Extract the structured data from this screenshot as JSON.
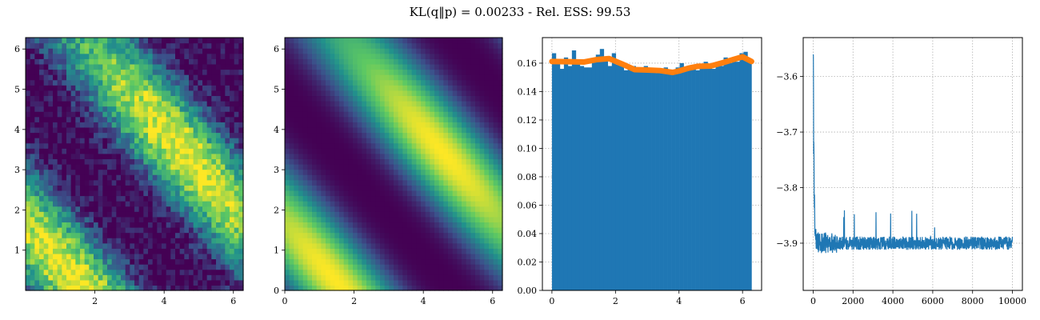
{
  "figure": {
    "title": "KL(q‖p) = 0.00233 - Rel. ESS: 99.53"
  },
  "chart_data": [
    {
      "type": "heatmap",
      "panel": "empirical-samples",
      "colormap": "viridis",
      "xlim": [
        0.0,
        6.283
      ],
      "ylim": [
        0.0,
        6.283
      ],
      "grid_resolution": 48,
      "xticks": [
        2,
        4,
        6
      ],
      "yticks": [
        1,
        2,
        3,
        4,
        5,
        6
      ],
      "density_model": {
        "band_orientation": "x+y",
        "peak_at_sum": 8.0,
        "period": 6.283,
        "noise": 0.32
      }
    },
    {
      "type": "heatmap",
      "panel": "target-density",
      "colormap": "viridis",
      "xlim": [
        0.0,
        6.283
      ],
      "ylim": [
        0.0,
        6.283
      ],
      "grid_resolution": 48,
      "xticks": [
        0,
        2,
        4,
        6
      ],
      "yticks": [
        0,
        1,
        2,
        3,
        4,
        5,
        6
      ],
      "density_model": {
        "band_orientation": "x+y",
        "peak_at_sum": 8.0,
        "period": 6.283,
        "noise": 0.0
      }
    },
    {
      "type": "bar",
      "panel": "marginal-histogram",
      "grid": true,
      "xlim": [
        -0.3,
        6.6
      ],
      "ylim": [
        0.0,
        0.178
      ],
      "xticks": [
        0,
        2,
        4,
        6
      ],
      "yticks": [
        0.0,
        0.02,
        0.04,
        0.06,
        0.08,
        0.1,
        0.12,
        0.14,
        0.16
      ],
      "bar_color": "#1f77b4",
      "bin_edges": [
        0.0,
        6.283
      ],
      "bin_values": [
        0.167,
        0.162,
        0.156,
        0.164,
        0.158,
        0.169,
        0.161,
        0.158,
        0.157,
        0.157,
        0.161,
        0.166,
        0.17,
        0.163,
        0.158,
        0.167,
        0.159,
        0.16,
        0.155,
        0.158,
        0.158,
        0.157,
        0.156,
        0.158,
        0.155,
        0.156,
        0.153,
        0.155,
        0.157,
        0.154,
        0.153,
        0.157,
        0.16,
        0.155,
        0.158,
        0.157,
        0.155,
        0.158,
        0.161,
        0.158,
        0.156,
        0.159,
        0.158,
        0.164,
        0.16,
        0.164,
        0.161,
        0.167,
        0.168,
        0.163
      ],
      "curve": {
        "color": "#ff7f0e",
        "x": [
          0.0,
          0.5,
          1.0,
          1.4,
          1.8,
          2.2,
          2.6,
          3.0,
          3.4,
          3.8,
          4.0,
          4.3,
          4.6,
          5.0,
          5.4,
          5.7,
          6.0,
          6.283
        ],
        "y": [
          0.1612,
          0.161,
          0.1608,
          0.1625,
          0.1632,
          0.1595,
          0.1555,
          0.1552,
          0.1548,
          0.1535,
          0.1545,
          0.1565,
          0.1578,
          0.158,
          0.1605,
          0.1625,
          0.1645,
          0.1612
        ]
      }
    },
    {
      "type": "line",
      "panel": "training-loss",
      "grid": true,
      "xlim": [
        -500,
        10500
      ],
      "ylim": [
        -3.985,
        -3.53
      ],
      "xticks": [
        0,
        2000,
        4000,
        6000,
        8000,
        10000
      ],
      "yticks": [
        -3.9,
        -3.8,
        -3.7,
        -3.6
      ],
      "line_color": "#1f77b4",
      "series": {
        "steps": 10000,
        "start": -3.55,
        "plateau": -3.9,
        "noise": 0.012
      }
    }
  ]
}
